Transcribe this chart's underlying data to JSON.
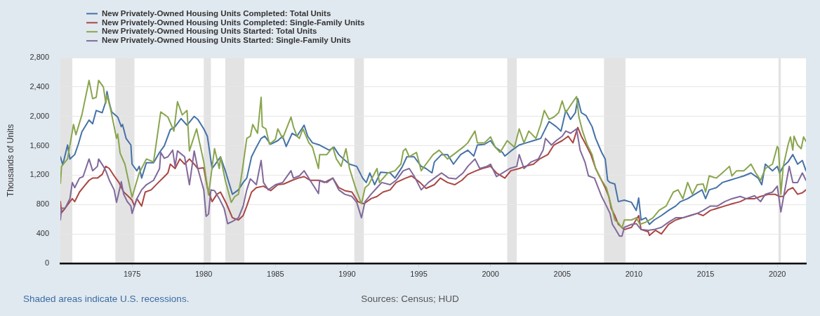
{
  "chart_data": {
    "type": "line",
    "ylabel": "Thousands of Units",
    "annotations": [
      "Shaded areas indicate U.S. recessions.",
      "Sources: Census; HUD"
    ],
    "xlim": [
      "1970-01",
      "2022-01"
    ],
    "ylim": [
      0,
      2800
    ],
    "xticks": [
      "1975",
      "1980",
      "1985",
      "1990",
      "1995",
      "2000",
      "2005",
      "2010",
      "2015",
      "2020"
    ],
    "yticks": [
      0,
      400,
      800,
      {
        "value": 1200,
        "label": "1,200"
      },
      {
        "value": 1600,
        "label": "1,600"
      },
      {
        "value": 2000,
        "label": "2,000"
      },
      {
        "value": 2400,
        "label": "2,400"
      },
      {
        "value": 2800,
        "label": "2,800"
      }
    ],
    "grid": "y",
    "legend": "top left",
    "marker": "none",
    "line_style": "solid",
    "bands": [
      {
        "axis": "x",
        "from": "1970-01",
        "to": "1970-11",
        "color": "#e3e3e3"
      },
      {
        "axis": "x",
        "from": "1973-11",
        "to": "1975-03",
        "color": "#e3e3e3"
      },
      {
        "axis": "x",
        "from": "1980-01",
        "to": "1980-07",
        "color": "#e3e3e3"
      },
      {
        "axis": "x",
        "from": "1981-07",
        "to": "1982-11",
        "color": "#e3e3e3"
      },
      {
        "axis": "x",
        "from": "1990-07",
        "to": "1991-03",
        "color": "#e3e3e3"
      },
      {
        "axis": "x",
        "from": "2001-03",
        "to": "2001-11",
        "color": "#e3e3e3"
      },
      {
        "axis": "x",
        "from": "2007-12",
        "to": "2009-06",
        "color": "#e3e3e3"
      },
      {
        "axis": "x",
        "from": "2020-02",
        "to": "2020-04",
        "color": "#e3e3e3"
      }
    ],
    "series": [
      {
        "name": "New Privately-Owned Housing Units Completed: Total Units",
        "color": "#4572a7",
        "x": [
          "1970-01",
          "1970-03",
          "1970-07",
          "1970-09",
          "1971-01",
          "1971-04",
          "1971-07",
          "1972-01",
          "1972-04",
          "1972-07",
          "1972-12",
          "1973-03",
          "1973-04",
          "1973-06",
          "1973-08",
          "1974-01",
          "1974-04",
          "1974-05",
          "1974-08",
          "1974-12",
          "1975-01",
          "1975-05",
          "1975-07",
          "1975-09",
          "1976-01",
          "1976-07",
          "1976-12",
          "1977-04",
          "1977-07",
          "1977-09",
          "1978-01",
          "1978-06",
          "1978-11",
          "1979-05",
          "1979-08",
          "1980-01",
          "1980-04",
          "1980-08",
          "1980-12",
          "1981-03",
          "1981-07",
          "1982-01",
          "1982-06",
          "1982-10",
          "1983-01",
          "1983-05",
          "1983-09",
          "1984-01",
          "1984-04",
          "1984-09",
          "1985-03",
          "1985-07",
          "1985-10",
          "1986-03",
          "1986-07",
          "1987-01",
          "1987-04",
          "1987-08",
          "1988-02",
          "1988-10",
          "1989-02",
          "1989-06",
          "1989-10",
          "1990-03",
          "1990-09",
          "1991-02",
          "1991-05",
          "1991-08",
          "1991-12",
          "1992-05",
          "1993-01",
          "1993-05",
          "1993-11",
          "1994-03",
          "1994-09",
          "1995-03",
          "1995-07",
          "1995-12",
          "1996-02",
          "1996-08",
          "1997-01",
          "1997-06",
          "1997-12",
          "1998-06",
          "1998-11",
          "1999-02",
          "1999-08",
          "2000-01",
          "2000-05",
          "2000-11",
          "2001-01",
          "2001-07",
          "2002-01",
          "2002-07",
          "2003-01",
          "2003-07",
          "2003-10",
          "2004-02",
          "2004-08",
          "2004-12",
          "2005-04",
          "2005-08",
          "2005-12",
          "2006-02",
          "2006-05",
          "2006-09",
          "2007-02",
          "2007-05",
          "2007-10",
          "2008-01",
          "2008-03",
          "2008-05",
          "2008-09",
          "2008-12",
          "2009-05",
          "2009-11",
          "2010-03",
          "2010-05",
          "2010-07",
          "2010-11",
          "2011-02",
          "2011-06",
          "2011-12",
          "2012-06",
          "2012-12",
          "2013-04",
          "2013-10",
          "2014-04",
          "2014-10",
          "2015-01",
          "2015-04",
          "2015-10",
          "2016-03",
          "2016-09",
          "2017-03",
          "2017-09",
          "2018-03",
          "2018-09",
          "2018-12",
          "2019-03",
          "2019-09",
          "2020-01",
          "2020-03",
          "2020-06",
          "2020-10",
          "2021-02",
          "2021-06",
          "2021-10",
          "2022-01"
        ],
        "values": [
          1450,
          1340,
          1610,
          1420,
          1480,
          1620,
          1790,
          1950,
          1900,
          2080,
          2050,
          2200,
          2340,
          2180,
          2060,
          1990,
          1860,
          1890,
          1700,
          1610,
          1350,
          1260,
          1320,
          1160,
          1370,
          1370,
          1510,
          1600,
          1730,
          1820,
          1860,
          1970,
          1880,
          2000,
          1960,
          1830,
          1730,
          1290,
          1380,
          1450,
          1260,
          940,
          1000,
          1100,
          1160,
          1450,
          1580,
          1700,
          1730,
          1620,
          1670,
          1730,
          1590,
          1770,
          1730,
          1880,
          1730,
          1640,
          1610,
          1540,
          1580,
          1480,
          1420,
          1350,
          1320,
          1160,
          1100,
          1230,
          1070,
          1240,
          1230,
          1160,
          1310,
          1450,
          1450,
          1320,
          1290,
          1230,
          1380,
          1480,
          1480,
          1350,
          1480,
          1540,
          1460,
          1610,
          1620,
          1670,
          1580,
          1510,
          1460,
          1540,
          1610,
          1640,
          1670,
          1700,
          1800,
          1930,
          1860,
          1800,
          2080,
          1960,
          2050,
          2240,
          2050,
          2010,
          1860,
          1700,
          1510,
          1420,
          1130,
          1100,
          1080,
          840,
          860,
          830,
          720,
          890,
          590,
          620,
          530,
          590,
          650,
          720,
          780,
          840,
          880,
          940,
          1000,
          880,
          1000,
          1030,
          1100,
          1130,
          1160,
          1190,
          1230,
          1160,
          1070,
          1350,
          1260,
          1320,
          1230,
          1320,
          1380,
          1480,
          1350,
          1400,
          1260
        ]
      },
      {
        "name": "New Privately-Owned Housing Units Completed: Single-Family Units",
        "color": "#aa4643",
        "x": [
          "1970-01",
          "1970-02",
          "1970-05",
          "1970-09",
          "1970-11",
          "1971-01",
          "1971-05",
          "1971-08",
          "1972-01",
          "1972-04",
          "1972-08",
          "1972-12",
          "1973-03",
          "1973-06",
          "1973-10",
          "1974-02",
          "1974-06",
          "1974-10",
          "1975-01",
          "1975-03",
          "1975-05",
          "1975-09",
          "1975-12",
          "1976-05",
          "1976-11",
          "1977-04",
          "1977-07",
          "1977-09",
          "1978-01",
          "1978-05",
          "1978-09",
          "1979-01",
          "1979-05",
          "1979-08",
          "1980-01",
          "1980-04",
          "1980-08",
          "1980-12",
          "1981-03",
          "1981-08",
          "1982-01",
          "1982-06",
          "1982-10",
          "1983-01",
          "1983-05",
          "1983-09",
          "1984-03",
          "1984-09",
          "1985-03",
          "1985-08",
          "1986-03",
          "1986-08",
          "1987-01",
          "1987-06",
          "1988-01",
          "1988-06",
          "1989-01",
          "1989-06",
          "1989-11",
          "1990-05",
          "1990-10",
          "1991-03",
          "1991-09",
          "1992-02",
          "1992-07",
          "1993-01",
          "1993-06",
          "1994-02",
          "1994-07",
          "1995-02",
          "1995-07",
          "1996-02",
          "1996-07",
          "1997-01",
          "1997-07",
          "1998-01",
          "1998-06",
          "1999-01",
          "1999-06",
          "2000-01",
          "2000-06",
          "2001-01",
          "2001-06",
          "2002-01",
          "2002-06",
          "2003-01",
          "2003-06",
          "2004-01",
          "2004-06",
          "2005-01",
          "2005-06",
          "2005-10",
          "2006-02",
          "2006-05",
          "2006-09",
          "2007-01",
          "2007-05",
          "2007-08",
          "2008-01",
          "2008-04",
          "2008-06",
          "2008-09",
          "2008-12",
          "2009-05",
          "2009-11",
          "2010-05",
          "2010-07",
          "2011-01",
          "2011-02",
          "2011-07",
          "2011-12",
          "2012-06",
          "2012-12",
          "2013-06",
          "2013-12",
          "2014-06",
          "2014-11",
          "2015-05",
          "2015-11",
          "2016-05",
          "2016-11",
          "2017-06",
          "2017-11",
          "2018-06",
          "2018-11",
          "2019-06",
          "2019-11",
          "2020-03",
          "2020-06",
          "2020-10",
          "2021-02",
          "2021-06",
          "2021-10",
          "2022-01"
        ],
        "values": [
          840,
          690,
          750,
          840,
          880,
          840,
          970,
          1030,
          1130,
          1160,
          1160,
          1210,
          1320,
          1290,
          1190,
          1100,
          970,
          910,
          860,
          780,
          880,
          780,
          970,
          1000,
          1100,
          1180,
          1230,
          1350,
          1290,
          1420,
          1350,
          1420,
          1350,
          1290,
          1300,
          1030,
          840,
          940,
          970,
          810,
          620,
          590,
          650,
          780,
          970,
          1030,
          1050,
          990,
          1070,
          1080,
          1130,
          1160,
          1180,
          1130,
          1130,
          1100,
          1160,
          1030,
          990,
          970,
          840,
          810,
          880,
          910,
          970,
          1000,
          1100,
          1160,
          1190,
          1100,
          1020,
          1070,
          1160,
          1100,
          1070,
          1130,
          1210,
          1260,
          1290,
          1320,
          1230,
          1160,
          1260,
          1290,
          1320,
          1350,
          1420,
          1480,
          1610,
          1670,
          1730,
          1640,
          1850,
          1730,
          1610,
          1480,
          1290,
          1190,
          1030,
          910,
          750,
          650,
          530,
          460,
          490,
          650,
          460,
          430,
          380,
          450,
          400,
          530,
          590,
          620,
          650,
          680,
          650,
          720,
          750,
          780,
          810,
          840,
          880,
          880,
          910,
          940,
          940,
          910,
          910,
          1000,
          1030,
          940,
          960,
          1000
        ]
      },
      {
        "name": "New Privately-Owned Housing Units Started: Total Units",
        "color": "#89a54e",
        "x": [
          "1970-01",
          "1970-02",
          "1970-07",
          "1970-12",
          "1971-02",
          "1971-07",
          "1972-01",
          "1972-04",
          "1972-07",
          "1972-09",
          "1973-01",
          "1973-03",
          "1973-04",
          "1973-07",
          "1973-12",
          "1974-01",
          "1974-03",
          "1974-07",
          "1975-01",
          "1975-07",
          "1976-01",
          "1976-07",
          "1977-01",
          "1977-07",
          "1977-12",
          "1978-03",
          "1978-07",
          "1978-11",
          "1979-01",
          "1979-07",
          "1980-01",
          "1980-05",
          "1980-10",
          "1981-02",
          "1981-03",
          "1981-07",
          "1981-12",
          "1982-03",
          "1982-06",
          "1982-08",
          "1982-10",
          "1983-01",
          "1983-04",
          "1983-06",
          "1983-10",
          "1984-01",
          "1984-02",
          "1984-05",
          "1984-08",
          "1985-01",
          "1985-03",
          "1985-07",
          "1986-02",
          "1986-04",
          "1986-07",
          "1986-09",
          "1986-12",
          "1987-05",
          "1987-08",
          "1988-01",
          "1988-02",
          "1988-08",
          "1989-01",
          "1989-04",
          "1989-08",
          "1989-12",
          "1990-03",
          "1990-08",
          "1991-01",
          "1991-04",
          "1991-07",
          "1992-02",
          "1992-04",
          "1992-11",
          "1993-05",
          "1993-10",
          "1993-12",
          "1994-02",
          "1994-05",
          "1994-08",
          "1994-11",
          "1995-03",
          "1995-07",
          "1996-01",
          "1996-06",
          "1997-01",
          "1997-06",
          "1998-02",
          "1998-06",
          "1998-12",
          "1999-02",
          "1999-08",
          "2000-01",
          "2000-05",
          "2000-09",
          "2001-03",
          "2001-09",
          "2002-01",
          "2002-05",
          "2002-09",
          "2003-03",
          "2003-07",
          "2003-10",
          "2004-02",
          "2004-06",
          "2004-10",
          "2005-01",
          "2005-04",
          "2005-08",
          "2006-01",
          "2006-03",
          "2006-06",
          "2006-10",
          "2007-02",
          "2007-05",
          "2007-10",
          "2008-02",
          "2008-04",
          "2008-07",
          "2008-09",
          "2008-12",
          "2009-03",
          "2009-05",
          "2009-11",
          "2010-03",
          "2010-06",
          "2010-11",
          "2011-05",
          "2011-10",
          "2012-04",
          "2012-10",
          "2013-02",
          "2013-06",
          "2013-10",
          "2014-02",
          "2014-06",
          "2014-11",
          "2015-01",
          "2015-04",
          "2015-10",
          "2016-03",
          "2016-09",
          "2016-11",
          "2017-03",
          "2017-09",
          "2018-03",
          "2018-07",
          "2018-11",
          "2019-03",
          "2019-09",
          "2020-01",
          "2020-02",
          "2020-03",
          "2020-04",
          "2020-06",
          "2020-10",
          "2020-12",
          "2021-02",
          "2021-03",
          "2021-06",
          "2021-09",
          "2021-11",
          "2022-01"
        ],
        "values": [
          1090,
          1320,
          1420,
          1890,
          1750,
          2020,
          2490,
          2240,
          2260,
          2490,
          2400,
          2180,
          2290,
          2100,
          1700,
          1760,
          1500,
          1350,
          900,
          1230,
          1420,
          1380,
          2060,
          1990,
          1800,
          2200,
          2020,
          2080,
          1530,
          1830,
          1380,
          930,
          1560,
          1290,
          1450,
          1130,
          830,
          910,
          940,
          1130,
          1350,
          1700,
          1730,
          1890,
          1770,
          2260,
          1860,
          1830,
          1620,
          1690,
          1830,
          1700,
          1990,
          1860,
          1730,
          1700,
          1830,
          1640,
          1580,
          1290,
          1480,
          1480,
          1580,
          1420,
          1320,
          1560,
          1290,
          1030,
          810,
          1030,
          1070,
          1290,
          1100,
          1230,
          1260,
          1350,
          1530,
          1560,
          1450,
          1480,
          1510,
          1260,
          1350,
          1480,
          1540,
          1420,
          1480,
          1580,
          1640,
          1800,
          1640,
          1640,
          1720,
          1580,
          1510,
          1670,
          1580,
          1830,
          1640,
          1800,
          1700,
          1890,
          2080,
          1960,
          1990,
          2050,
          2210,
          2050,
          2150,
          2270,
          1990,
          1800,
          1610,
          1480,
          1290,
          1130,
          1030,
          910,
          720,
          590,
          550,
          480,
          590,
          590,
          620,
          530,
          560,
          620,
          720,
          780,
          970,
          1000,
          880,
          1100,
          940,
          1070,
          1080,
          970,
          1190,
          1160,
          1230,
          1320,
          1190,
          1260,
          1260,
          1350,
          1230,
          1130,
          1290,
          1350,
          1590,
          1560,
          1270,
          940,
          1320,
          1610,
          1720,
          1540,
          1730,
          1610,
          1560,
          1720,
          1660
        ]
      },
      {
        "name": "New Privately-Owned Housing Units Started: Single-Family Units",
        "color": "#80699b",
        "x": [
          "1970-01",
          "1970-02",
          "1970-05",
          "1970-09",
          "1970-11",
          "1971-01",
          "1971-05",
          "1971-08",
          "1972-01",
          "1972-04",
          "1972-08",
          "1972-09",
          "1973-01",
          "1973-03",
          "1973-06",
          "1973-10",
          "1973-12",
          "1974-02",
          "1974-04",
          "1974-06",
          "1974-09",
          "1974-12",
          "1975-01",
          "1975-05",
          "1975-09",
          "1976-01",
          "1976-07",
          "1976-12",
          "1977-01",
          "1977-04",
          "1977-07",
          "1977-11",
          "1978-01",
          "1978-03",
          "1978-09",
          "1979-01",
          "1979-05",
          "1979-08",
          "1980-01",
          "1980-03",
          "1980-05",
          "1980-07",
          "1980-10",
          "1981-02",
          "1981-06",
          "1981-09",
          "1982-01",
          "1982-06",
          "1982-10",
          "1983-01",
          "1983-04",
          "1983-09",
          "1984-01",
          "1984-03",
          "1984-07",
          "1985-01",
          "1985-07",
          "1986-02",
          "1986-04",
          "1986-09",
          "1987-01",
          "1987-06",
          "1988-01",
          "1988-02",
          "1988-08",
          "1989-01",
          "1989-06",
          "1989-11",
          "1990-05",
          "1990-09",
          "1991-01",
          "1991-04",
          "1991-09",
          "1992-02",
          "1992-06",
          "1993-01",
          "1993-06",
          "1993-12",
          "1994-05",
          "1994-09",
          "1995-03",
          "1995-09",
          "1996-02",
          "1996-08",
          "1997-02",
          "1997-08",
          "1998-02",
          "1998-06",
          "1998-12",
          "1999-04",
          "1999-10",
          "2000-01",
          "2000-06",
          "2000-11",
          "2001-05",
          "2001-11",
          "2002-01",
          "2002-05",
          "2002-11",
          "2003-05",
          "2003-09",
          "2003-11",
          "2004-04",
          "2004-08",
          "2005-01",
          "2005-04",
          "2005-08",
          "2006-01",
          "2006-04",
          "2006-08",
          "2006-11",
          "2007-04",
          "2007-10",
          "2008-02",
          "2008-05",
          "2008-07",
          "2008-09",
          "2009-01",
          "2009-03",
          "2009-05",
          "2009-11",
          "2010-03",
          "2010-07",
          "2011-01",
          "2011-06",
          "2011-12",
          "2012-06",
          "2012-12",
          "2013-06",
          "2013-12",
          "2014-06",
          "2014-11",
          "2015-05",
          "2015-11",
          "2016-05",
          "2016-11",
          "2017-06",
          "2017-11",
          "2018-06",
          "2018-11",
          "2019-03",
          "2019-09",
          "2020-01",
          "2020-04",
          "2020-07",
          "2020-11",
          "2021-02",
          "2021-06",
          "2021-10",
          "2022-01"
        ],
        "values": [
          590,
          750,
          750,
          880,
          1100,
          1030,
          1160,
          1180,
          1420,
          1260,
          1320,
          1420,
          1320,
          1260,
          1130,
          1000,
          830,
          970,
          1110,
          940,
          840,
          780,
          680,
          880,
          1000,
          1070,
          1130,
          1290,
          1510,
          1430,
          1450,
          1540,
          1320,
          1530,
          1450,
          1070,
          1530,
          1290,
          1000,
          640,
          670,
          1000,
          990,
          880,
          750,
          540,
          570,
          620,
          780,
          1000,
          1150,
          1070,
          1400,
          1100,
          1000,
          1070,
          1100,
          1260,
          1160,
          1190,
          1260,
          1130,
          950,
          1130,
          1100,
          1160,
          1000,
          940,
          910,
          830,
          620,
          840,
          940,
          1030,
          1100,
          1070,
          1130,
          1260,
          1290,
          1190,
          1000,
          1100,
          1160,
          1230,
          1160,
          1150,
          1230,
          1320,
          1420,
          1290,
          1320,
          1350,
          1180,
          1230,
          1290,
          1320,
          1480,
          1290,
          1380,
          1420,
          1540,
          1700,
          1610,
          1670,
          1730,
          1800,
          1770,
          1830,
          1540,
          1380,
          1190,
          1160,
          910,
          780,
          680,
          530,
          480,
          370,
          370,
          490,
          530,
          540,
          460,
          450,
          460,
          490,
          560,
          620,
          620,
          650,
          680,
          720,
          780,
          780,
          840,
          880,
          910,
          880,
          920,
          840,
          940,
          970,
          1050,
          700,
          970,
          1320,
          1100,
          1100,
          1230,
          1130
        ]
      }
    ]
  }
}
